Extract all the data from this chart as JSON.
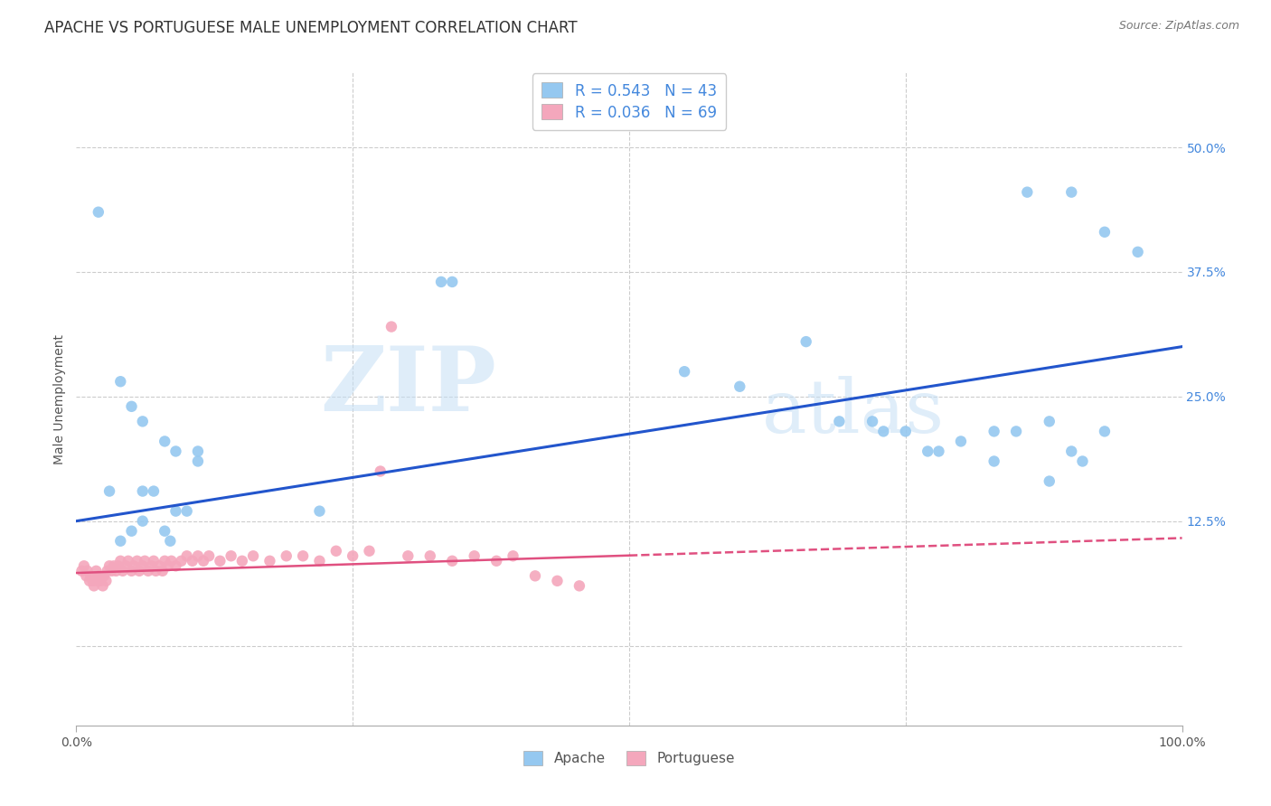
{
  "title": "APACHE VS PORTUGUESE MALE UNEMPLOYMENT CORRELATION CHART",
  "source": "Source: ZipAtlas.com",
  "ylabel": "Male Unemployment",
  "xlim": [
    0.0,
    1.0
  ],
  "ylim": [
    -0.08,
    0.575
  ],
  "yticks": [
    0.0,
    0.125,
    0.25,
    0.375,
    0.5
  ],
  "ytick_labels": [
    "",
    "12.5%",
    "25.0%",
    "37.5%",
    "50.0%"
  ],
  "xticks": [
    0.0,
    1.0
  ],
  "xtick_labels": [
    "0.0%",
    "100.0%"
  ],
  "apache_color": "#95C8F0",
  "portuguese_color": "#F4A7BC",
  "apache_line_color": "#2255CC",
  "portuguese_line_color": "#E05080",
  "apache_R": 0.543,
  "apache_N": 43,
  "portuguese_R": 0.036,
  "portuguese_N": 69,
  "watermark_zip": "ZIP",
  "watermark_atlas": "atlas",
  "background_color": "#ffffff",
  "grid_color": "#cccccc",
  "tick_color": "#4488DD",
  "apache_scatter": [
    [
      0.02,
      0.435
    ],
    [
      0.33,
      0.365
    ],
    [
      0.34,
      0.365
    ],
    [
      0.86,
      0.455
    ],
    [
      0.9,
      0.455
    ],
    [
      0.93,
      0.415
    ],
    [
      0.96,
      0.395
    ],
    [
      0.04,
      0.265
    ],
    [
      0.05,
      0.24
    ],
    [
      0.06,
      0.225
    ],
    [
      0.08,
      0.205
    ],
    [
      0.09,
      0.195
    ],
    [
      0.11,
      0.195
    ],
    [
      0.11,
      0.185
    ],
    [
      0.55,
      0.275
    ],
    [
      0.6,
      0.26
    ],
    [
      0.66,
      0.305
    ],
    [
      0.69,
      0.225
    ],
    [
      0.72,
      0.225
    ],
    [
      0.73,
      0.215
    ],
    [
      0.75,
      0.215
    ],
    [
      0.77,
      0.195
    ],
    [
      0.78,
      0.195
    ],
    [
      0.8,
      0.205
    ],
    [
      0.83,
      0.215
    ],
    [
      0.83,
      0.185
    ],
    [
      0.85,
      0.215
    ],
    [
      0.88,
      0.225
    ],
    [
      0.9,
      0.195
    ],
    [
      0.91,
      0.185
    ],
    [
      0.93,
      0.215
    ],
    [
      0.88,
      0.165
    ],
    [
      0.03,
      0.155
    ],
    [
      0.06,
      0.155
    ],
    [
      0.07,
      0.155
    ],
    [
      0.09,
      0.135
    ],
    [
      0.1,
      0.135
    ],
    [
      0.22,
      0.135
    ],
    [
      0.04,
      0.105
    ],
    [
      0.05,
      0.115
    ],
    [
      0.06,
      0.125
    ],
    [
      0.08,
      0.115
    ],
    [
      0.085,
      0.105
    ]
  ],
  "portuguese_scatter": [
    [
      0.005,
      0.075
    ],
    [
      0.007,
      0.08
    ],
    [
      0.009,
      0.07
    ],
    [
      0.01,
      0.075
    ],
    [
      0.012,
      0.065
    ],
    [
      0.013,
      0.07
    ],
    [
      0.015,
      0.065
    ],
    [
      0.016,
      0.06
    ],
    [
      0.018,
      0.075
    ],
    [
      0.019,
      0.065
    ],
    [
      0.02,
      0.07
    ],
    [
      0.022,
      0.065
    ],
    [
      0.024,
      0.06
    ],
    [
      0.025,
      0.07
    ],
    [
      0.027,
      0.065
    ],
    [
      0.028,
      0.075
    ],
    [
      0.03,
      0.08
    ],
    [
      0.032,
      0.075
    ],
    [
      0.034,
      0.08
    ],
    [
      0.036,
      0.075
    ],
    [
      0.038,
      0.08
    ],
    [
      0.04,
      0.085
    ],
    [
      0.042,
      0.075
    ],
    [
      0.045,
      0.08
    ],
    [
      0.047,
      0.085
    ],
    [
      0.05,
      0.075
    ],
    [
      0.052,
      0.08
    ],
    [
      0.055,
      0.085
    ],
    [
      0.057,
      0.075
    ],
    [
      0.06,
      0.08
    ],
    [
      0.062,
      0.085
    ],
    [
      0.065,
      0.075
    ],
    [
      0.068,
      0.08
    ],
    [
      0.07,
      0.085
    ],
    [
      0.072,
      0.075
    ],
    [
      0.075,
      0.08
    ],
    [
      0.078,
      0.075
    ],
    [
      0.08,
      0.085
    ],
    [
      0.083,
      0.08
    ],
    [
      0.086,
      0.085
    ],
    [
      0.09,
      0.08
    ],
    [
      0.095,
      0.085
    ],
    [
      0.1,
      0.09
    ],
    [
      0.105,
      0.085
    ],
    [
      0.11,
      0.09
    ],
    [
      0.115,
      0.085
    ],
    [
      0.12,
      0.09
    ],
    [
      0.13,
      0.085
    ],
    [
      0.14,
      0.09
    ],
    [
      0.15,
      0.085
    ],
    [
      0.16,
      0.09
    ],
    [
      0.175,
      0.085
    ],
    [
      0.19,
      0.09
    ],
    [
      0.205,
      0.09
    ],
    [
      0.22,
      0.085
    ],
    [
      0.235,
      0.095
    ],
    [
      0.25,
      0.09
    ],
    [
      0.265,
      0.095
    ],
    [
      0.275,
      0.175
    ],
    [
      0.285,
      0.32
    ],
    [
      0.3,
      0.09
    ],
    [
      0.32,
      0.09
    ],
    [
      0.34,
      0.085
    ],
    [
      0.36,
      0.09
    ],
    [
      0.38,
      0.085
    ],
    [
      0.395,
      0.09
    ],
    [
      0.415,
      0.07
    ],
    [
      0.435,
      0.065
    ],
    [
      0.455,
      0.06
    ]
  ],
  "title_fontsize": 12,
  "axis_fontsize": 10,
  "tick_fontsize": 10,
  "legend_fontsize": 12
}
